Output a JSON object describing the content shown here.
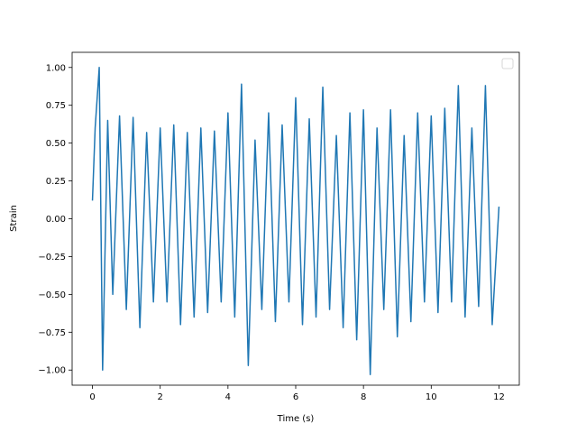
{
  "chart_data": {
    "type": "line",
    "title": "",
    "xlabel": "Time (s)",
    "ylabel": "Strain",
    "xlim": [
      -0.6,
      12.6
    ],
    "ylim": [
      -1.1,
      1.1
    ],
    "xticks": [
      0,
      2,
      4,
      6,
      8,
      10,
      12
    ],
    "yticks": [
      -1.0,
      -0.75,
      -0.5,
      -0.25,
      0.0,
      0.25,
      0.5,
      0.75,
      1.0
    ],
    "xtick_labels": [
      "0",
      "2",
      "4",
      "6",
      "8",
      "10",
      "12"
    ],
    "ytick_labels": [
      "−1.00",
      "−0.75",
      "−0.50",
      "−0.25",
      "0.00",
      "0.25",
      "0.50",
      "0.75",
      "1.00"
    ],
    "grid": false,
    "legend": {
      "placement": "top-right",
      "entries": []
    },
    "series": [
      {
        "color": "#1f77b4",
        "x": [
          0.0,
          0.08,
          0.2,
          0.3,
          0.45,
          0.6,
          0.8,
          1.0,
          1.2,
          1.4,
          1.6,
          1.8,
          2.0,
          2.2,
          2.4,
          2.6,
          2.8,
          3.0,
          3.2,
          3.4,
          3.6,
          3.8,
          4.0,
          4.2,
          4.4,
          4.6,
          4.8,
          5.0,
          5.2,
          5.4,
          5.6,
          5.8,
          6.0,
          6.2,
          6.4,
          6.6,
          6.8,
          7.0,
          7.2,
          7.4,
          7.6,
          7.8,
          8.0,
          8.2,
          8.4,
          8.6,
          8.8,
          9.0,
          9.2,
          9.4,
          9.6,
          9.8,
          10.0,
          10.2,
          10.4,
          10.6,
          10.8,
          11.0,
          11.2,
          11.4,
          11.6,
          11.8,
          12.0
        ],
        "y": [
          0.12,
          0.6,
          1.0,
          -1.0,
          0.65,
          -0.5,
          0.68,
          -0.6,
          0.67,
          -0.72,
          0.57,
          -0.55,
          0.6,
          -0.55,
          0.62,
          -0.7,
          0.57,
          -0.65,
          0.6,
          -0.62,
          0.58,
          -0.55,
          0.7,
          -0.65,
          0.89,
          -0.97,
          0.52,
          -0.6,
          0.7,
          -0.68,
          0.62,
          -0.55,
          0.8,
          -0.7,
          0.66,
          -0.65,
          0.87,
          -0.6,
          0.55,
          -0.72,
          0.7,
          -0.8,
          0.72,
          -1.03,
          0.6,
          -0.6,
          0.72,
          -0.78,
          0.55,
          -0.68,
          0.7,
          -0.55,
          0.68,
          -0.62,
          0.73,
          -0.55,
          0.88,
          -0.65,
          0.6,
          -0.58,
          0.88,
          -0.7,
          0.08
        ]
      }
    ]
  }
}
